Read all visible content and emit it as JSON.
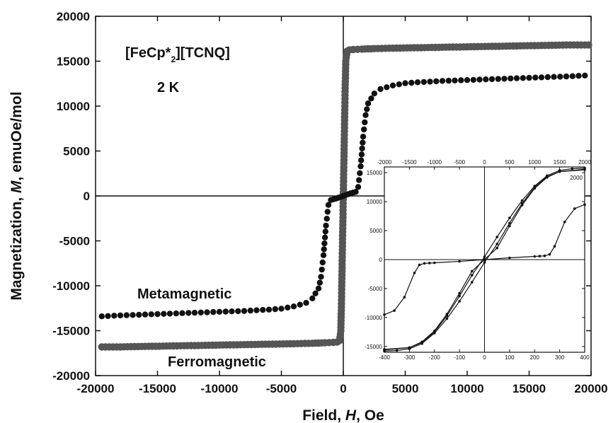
{
  "chart_data": [
    {
      "type": "scatter",
      "xlabel_pre": "Field, ",
      "xlabel_var": "H",
      "xlabel_post": ", Oe",
      "ylabel_pre": "Magnetization, ",
      "ylabel_var": "M",
      "ylabel_post": ", emuOe/mol",
      "xlim": [
        -20000,
        20000
      ],
      "ylim": [
        -20000,
        20000
      ],
      "xticks": [
        "-20000",
        "-15000",
        "-10000",
        "-5000",
        "0",
        "5000",
        "10000",
        "15000",
        "20000"
      ],
      "yticks": [
        "20000",
        "15000",
        "10000",
        "5000",
        "0",
        "-5000",
        "-10000",
        "-15000",
        "-20000"
      ],
      "annotations": {
        "compound_a": "[FeCp*",
        "compound_sub": "2",
        "compound_b": "][TCNQ]",
        "temperature": "2 K",
        "metamagnetic": "Metamagnetic",
        "ferromagnetic": "Ferromagnetic"
      },
      "series": [
        {
          "label_key": "ferromagnetic",
          "color": "#555555",
          "x": [
            -19500,
            -18000,
            -16000,
            -14000,
            -12000,
            -10000,
            -8000,
            -6000,
            -4000,
            -2500,
            -1500,
            -800,
            -500,
            -300,
            -200,
            -150,
            -100,
            -50,
            0,
            50,
            100,
            150,
            200,
            300,
            500,
            800,
            1500,
            2500,
            4000,
            6000,
            8000,
            10000,
            12000,
            14000,
            16000,
            18000,
            19800
          ],
          "y": [
            -16800,
            -16800,
            -16750,
            -16700,
            -16650,
            -16600,
            -16550,
            -16500,
            -16450,
            -16400,
            -16350,
            -16300,
            -16250,
            -16100,
            -15000,
            -12000,
            -8000,
            -4000,
            0,
            4000,
            8000,
            12000,
            15000,
            16100,
            16250,
            16300,
            16350,
            16400,
            16450,
            16500,
            16550,
            16600,
            16650,
            16700,
            16750,
            16800,
            16800
          ]
        },
        {
          "label_key": "metamagnetic",
          "color": "#111111",
          "x": [
            -19500,
            -18000,
            -16000,
            -14000,
            -12000,
            -10000,
            -8000,
            -6000,
            -5000,
            -4000,
            -3000,
            -2500,
            -2000,
            -1800,
            -1600,
            -1400,
            -1200,
            -1000,
            -800,
            -600,
            -400,
            -200,
            0,
            200,
            400,
            600,
            800,
            1000,
            1200,
            1400,
            1600,
            1800,
            2000,
            2500,
            3000,
            4000,
            5000,
            6000,
            8000,
            10000,
            12000,
            14000,
            16000,
            18000,
            19500
          ],
          "y": [
            -13400,
            -13300,
            -13200,
            -13100,
            -13000,
            -12900,
            -12800,
            -12650,
            -12550,
            -12300,
            -11900,
            -11400,
            -10300,
            -9000,
            -6600,
            -3300,
            -1000,
            -450,
            -380,
            -300,
            -200,
            -100,
            0,
            100,
            200,
            300,
            380,
            450,
            1000,
            3300,
            6600,
            9000,
            10300,
            11400,
            11900,
            12300,
            12550,
            12650,
            12800,
            12900,
            13000,
            13100,
            13200,
            13300,
            13400
          ]
        }
      ]
    },
    {
      "type": "line",
      "xlim_bottom": [
        -400,
        400
      ],
      "xlim_top": [
        -2000,
        2000
      ],
      "ylim": [
        -16000,
        16000
      ],
      "xticks_bottom": [
        "-400",
        "-300",
        "-200",
        "-100",
        "0",
        "100",
        "200",
        "300",
        "400"
      ],
      "xticks_top": [
        "-2000",
        "-1500",
        "-1000",
        "-500",
        "0",
        "500",
        "1000",
        "1500",
        "2000"
      ],
      "yticks": [
        "15000",
        "10000",
        "5000",
        "0",
        "-5000",
        "-10000",
        "-15000"
      ],
      "series": [
        {
          "name_key": "ferromagnetic_up",
          "axis": "bottom",
          "x": [
            -400,
            -300,
            -250,
            -200,
            -150,
            -100,
            -50,
            0,
            50,
            100,
            150,
            200,
            250,
            300,
            350,
            400
          ],
          "y": [
            -15500,
            -15200,
            -14300,
            -12500,
            -9700,
            -6300,
            -2700,
            500,
            3900,
            7200,
            10200,
            12700,
            14500,
            15400,
            15700,
            15800
          ]
        },
        {
          "name_key": "ferromagnetic_down",
          "axis": "bottom",
          "x": [
            -400,
            -350,
            -300,
            -250,
            -200,
            -150,
            -100,
            -50,
            0,
            50,
            100,
            150,
            200,
            250,
            300,
            400
          ],
          "y": [
            -15800,
            -15700,
            -15400,
            -14500,
            -12700,
            -10200,
            -7200,
            -3900,
            -500,
            2700,
            6300,
            9700,
            12500,
            14300,
            15200,
            15500
          ]
        },
        {
          "name_key": "ferromagnetic_mid",
          "axis": "bottom",
          "x": [
            -400,
            -300,
            -250,
            -200,
            -150,
            -100,
            -50,
            0,
            50,
            100,
            150,
            200,
            250,
            300,
            400
          ],
          "y": [
            -15600,
            -15200,
            -14200,
            -12300,
            -9400,
            -5800,
            -2000,
            0,
            2000,
            5800,
            9400,
            12300,
            14200,
            15200,
            15600
          ]
        },
        {
          "name_key": "metamagnetic",
          "axis": "top",
          "x": [
            -2000,
            -1800,
            -1600,
            -1400,
            -1300,
            -1200,
            -1100,
            -1000,
            -500,
            0,
            500,
            1000,
            1100,
            1200,
            1300,
            1400,
            1600,
            1800,
            2000
          ],
          "y": [
            -9500,
            -8800,
            -6500,
            -2300,
            -900,
            -650,
            -600,
            -550,
            -300,
            0,
            300,
            550,
            600,
            650,
            900,
            2300,
            6500,
            8800,
            9500
          ]
        }
      ]
    }
  ]
}
